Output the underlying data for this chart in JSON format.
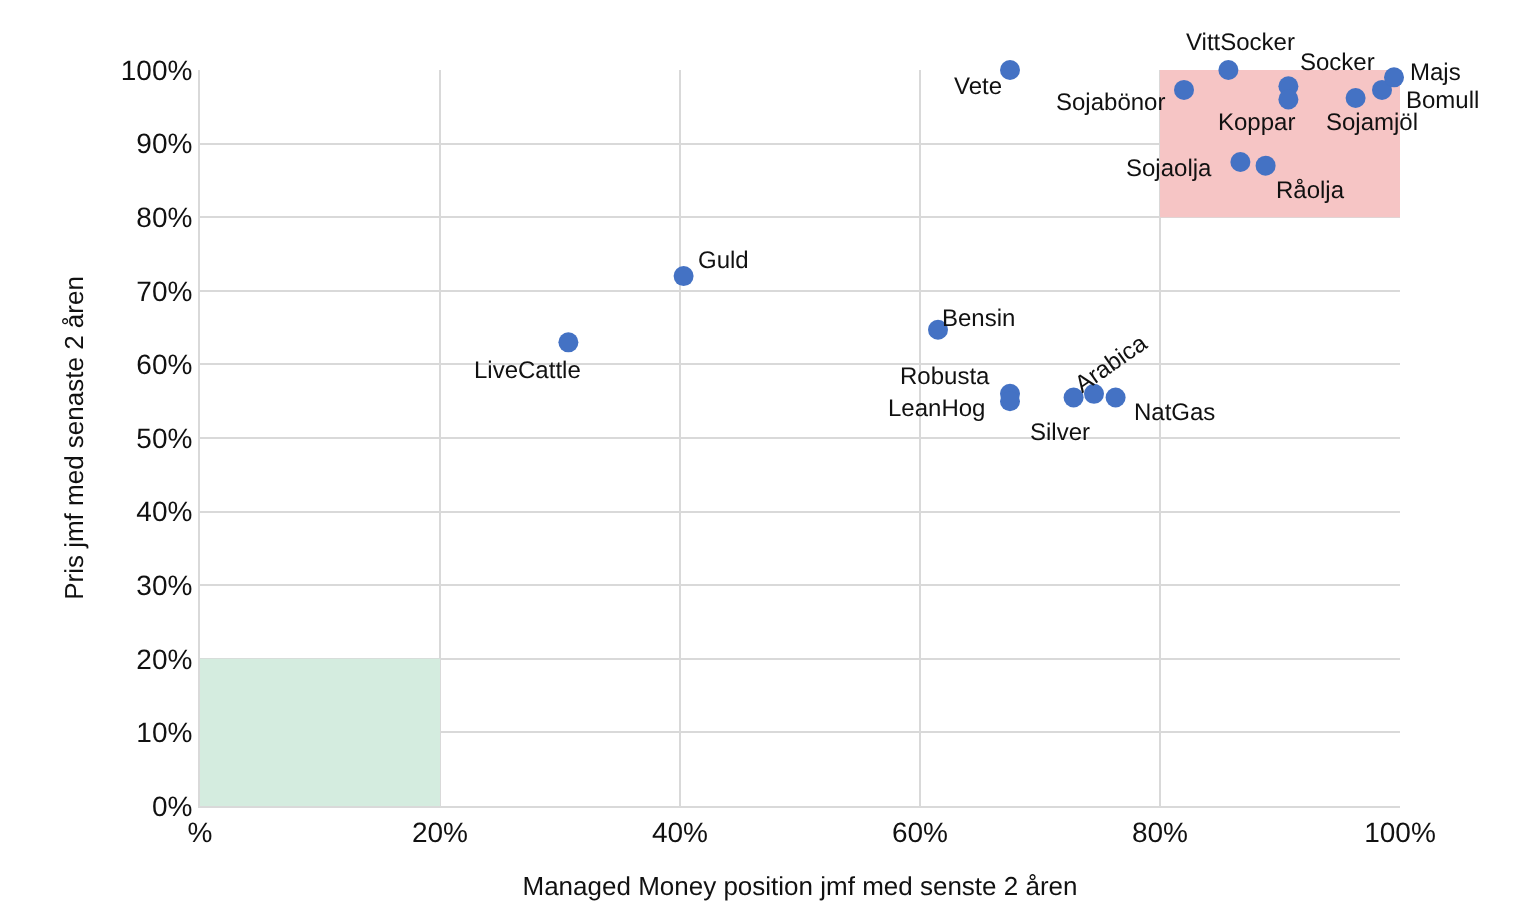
{
  "chart_data": {
    "type": "scatter",
    "xlabel": "Managed Money position jmf med senste 2 åren",
    "ylabel": "Pris jmf med senaste 2 åren",
    "x": [
      67.5,
      85.7,
      82,
      90.7,
      90.7,
      96.3,
      98.5,
      99.5,
      86.7,
      88.8,
      40.3,
      30.7,
      61.5,
      67.5,
      67.5,
      72.8,
      74.5,
      76.3
    ],
    "series": [
      {
        "type": "bar",
        "x": [
          90
        ],
        "values": [
          20
        ],
        "base": [
          80
        ],
        "color": "#f6c5c5"
      },
      {
        "type": "bar",
        "x": [
          10
        ],
        "values": [
          20
        ],
        "base": [
          0
        ],
        "color": "#d4ecdf"
      },
      {
        "color": "#4472c4",
        "values": [
          100,
          100,
          97.3,
          97.8,
          96,
          96.2,
          97.3,
          99,
          87.5,
          87,
          72,
          63,
          64.7,
          56,
          55,
          55.5,
          56,
          55.5
        ]
      }
    ],
    "annotations": [
      {
        "text": "Vete",
        "x": 67.5,
        "y": 100
      },
      {
        "text": "VittSocker",
        "x": 85.7,
        "y": 100
      },
      {
        "text": "Sojabönor",
        "x": 82,
        "y": 97.3
      },
      {
        "text": "Socker",
        "x": 90.7,
        "y": 97.8
      },
      {
        "text": "Koppar",
        "x": 90.7,
        "y": 96
      },
      {
        "text": "Sojamjöl",
        "x": 96.3,
        "y": 96.2
      },
      {
        "text": "Bomull",
        "x": 98.5,
        "y": 97.3
      },
      {
        "text": "Majs",
        "x": 99.5,
        "y": 99
      },
      {
        "text": "Sojaolja",
        "x": 86.7,
        "y": 87.5
      },
      {
        "text": "Råolja",
        "x": 88.8,
        "y": 87
      },
      {
        "text": "Guld",
        "x": 40.3,
        "y": 72
      },
      {
        "text": "LiveCattle",
        "x": 30.7,
        "y": 63
      },
      {
        "text": "Bensin",
        "x": 61.5,
        "y": 64.7
      },
      {
        "text": "Robusta",
        "x": 67.5,
        "y": 56
      },
      {
        "text": "LeanHog",
        "x": 67.5,
        "y": 55
      },
      {
        "text": "Silver",
        "x": 72.8,
        "y": 55.5
      },
      {
        "text": "Arabica",
        "x": 74.5,
        "y": 56
      },
      {
        "text": "NatGas",
        "x": 76.3,
        "y": 55.5
      }
    ],
    "xlim": [
      0,
      100
    ],
    "ylim": [
      0,
      100
    ],
    "xticks": [
      {
        "value": 0,
        "label": "%"
      },
      {
        "value": 20,
        "label": "20%"
      },
      {
        "value": 40,
        "label": "40%"
      },
      {
        "value": 60,
        "label": "60%"
      },
      {
        "value": 80,
        "label": "80%"
      },
      {
        "value": 100,
        "label": "100%"
      }
    ],
    "yticks": [
      {
        "value": 0,
        "label": "0%"
      },
      {
        "value": 10,
        "label": "10%"
      },
      {
        "value": 20,
        "label": "20%"
      },
      {
        "value": 30,
        "label": "30%"
      },
      {
        "value": 40,
        "label": "40%"
      },
      {
        "value": 50,
        "label": "50%"
      },
      {
        "value": 60,
        "label": "60%"
      },
      {
        "value": 70,
        "label": "70%"
      },
      {
        "value": 80,
        "label": "80%"
      },
      {
        "value": 90,
        "label": "90%"
      },
      {
        "value": 100,
        "label": "100%"
      }
    ],
    "grid": true,
    "marker": "circle"
  }
}
